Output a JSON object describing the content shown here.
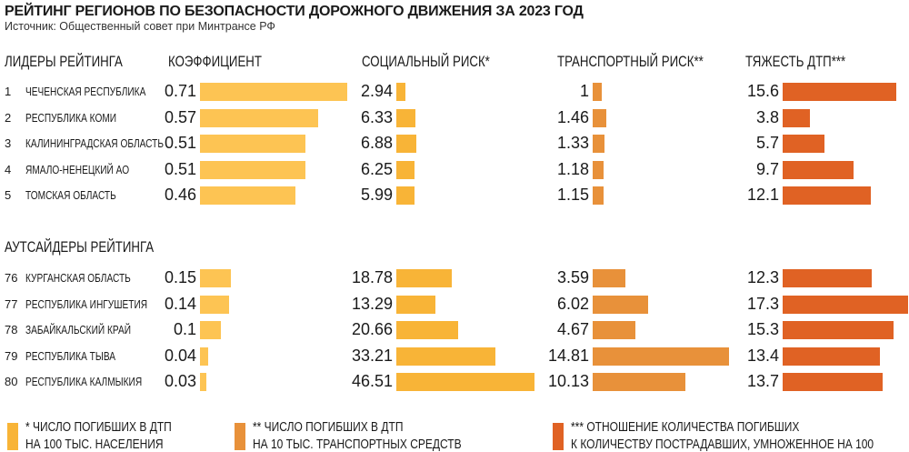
{
  "title": "РЕЙТИНГ РЕГИОНОВ ПО БЕЗОПАСНОСТИ ДОРОЖНОГО ДВИЖЕНИЯ ЗА 2023 ГОД",
  "subtitle": "Источник: Общественный совет при Минтрансе РФ",
  "colors": {
    "coef": "#FDC453",
    "social": "#F8B437",
    "transport": "#E8913A",
    "severity": "#E06224"
  },
  "chart_data": {
    "type": "table",
    "columns": [
      "КОЭФФИЦИЕНТ",
      "СОЦИАЛЬНЫЙ РИСК*",
      "ТРАНСПОРТНЫЙ РИСК**",
      "ТЯЖЕСТЬ ДТП***"
    ],
    "groups": [
      {
        "label": "ЛИДЕРЫ РЕЙТИНГА",
        "rows": [
          {
            "rank": "1",
            "name": "ЧЕЧЕНСКАЯ РЕСПУБЛИКА",
            "coef": "0.71",
            "social": "2.94",
            "transport": "1",
            "severity": "15.6"
          },
          {
            "rank": "2",
            "name": "РЕСПУБЛИКА КОМИ",
            "coef": "0.57",
            "social": "6.33",
            "transport": "1.46",
            "severity": "3.8"
          },
          {
            "rank": "3",
            "name": "КАЛИНИНГРАДСКАЯ ОБЛАСТЬ",
            "coef": "0.51",
            "social": "6.88",
            "transport": "1.33",
            "severity": "5.7"
          },
          {
            "rank": "4",
            "name": "ЯМАЛО-НЕНЕЦКИЙ АО",
            "coef": "0.51",
            "social": "6.25",
            "transport": "1.18",
            "severity": "9.7"
          },
          {
            "rank": "5",
            "name": "ТОМСКАЯ ОБЛАСТЬ",
            "coef": "0.46",
            "social": "5.99",
            "transport": "1.15",
            "severity": "12.1"
          }
        ]
      },
      {
        "label": "АУТСАЙДЕРЫ РЕЙТИНГА",
        "rows": [
          {
            "rank": "76",
            "name": "КУРГАНСКАЯ ОБЛАСТЬ",
            "coef": "0.15",
            "social": "18.78",
            "transport": "3.59",
            "severity": "12.3"
          },
          {
            "rank": "77",
            "name": "РЕСПУБЛИКА ИНГУШЕТИЯ",
            "coef": "0.14",
            "social": "13.29",
            "transport": "6.02",
            "severity": "17.3"
          },
          {
            "rank": "78",
            "name": "ЗАБАЙКАЛЬСКИЙ КРАЙ",
            "coef": "0.1",
            "social": "20.66",
            "transport": "4.67",
            "severity": "15.3"
          },
          {
            "rank": "79",
            "name": "РЕСПУБЛИКА ТЫВА",
            "coef": "0.04",
            "social": "33.21",
            "transport": "14.81",
            "severity": "13.4"
          },
          {
            "rank": "80",
            "name": "РЕСПУБЛИКА КАЛМЫКИЯ",
            "coef": "0.03",
            "social": "46.51",
            "transport": "10.13",
            "severity": "13.7"
          }
        ]
      }
    ]
  },
  "legend": [
    {
      "line1": "*   ЧИСЛО ПОГИБШИХ В ДТП",
      "line2": "НА 100 ТЫС. НАСЕЛЕНИЯ"
    },
    {
      "line1": "** ЧИСЛО ПОГИБШИХ В ДТП",
      "line2": "НА 10 ТЫС. ТРАНСПОРТНЫХ СРЕДСТВ"
    },
    {
      "line1": "*** ОТНОШЕНИЕ КОЛИЧЕСТВА ПОГИБШИХ",
      "line2": "К КОЛИЧЕСТВУ ПОСТРАДАВШИХ, УМНОЖЕННОЕ НА 100"
    }
  ]
}
